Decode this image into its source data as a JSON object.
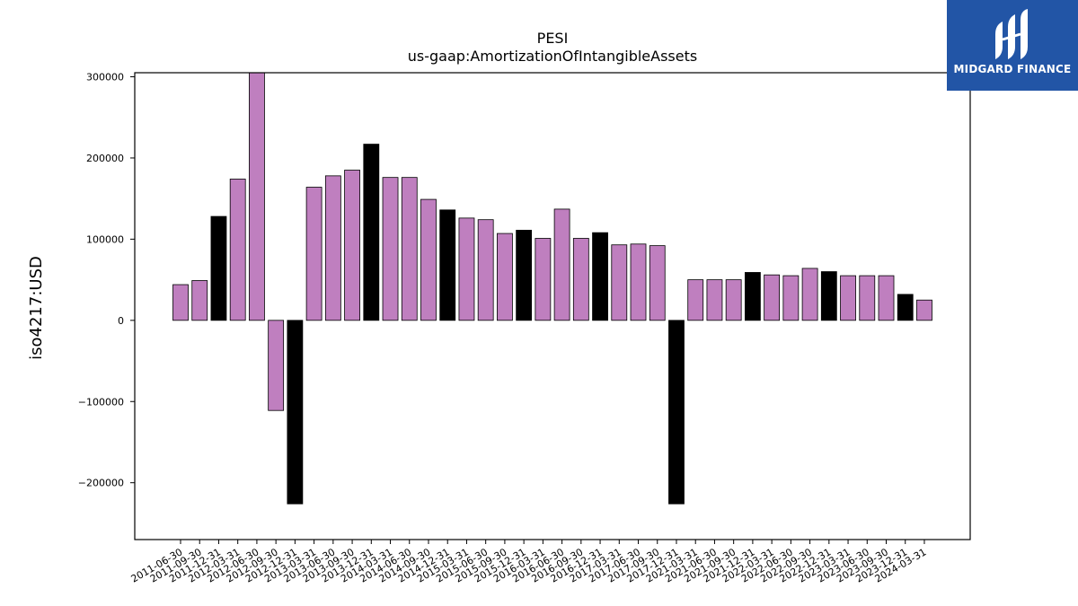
{
  "chart_data": {
    "type": "bar",
    "title": "PESI",
    "subtitle": "us-gaap:AmortizationOfIntangibleAssets",
    "xlabel": "",
    "ylabel": "iso4217:USD",
    "ylim": [
      -270000,
      305000
    ],
    "yticks": [
      -200000,
      -100000,
      0,
      100000,
      200000,
      300000
    ],
    "grid": false,
    "colors": {
      "quarter": "#bf7fbf",
      "annual": "#000000",
      "edge": "#000000"
    },
    "categories": [
      "2011-06-30",
      "2011-09-30",
      "2011-12-31",
      "2012-03-31",
      "2012-06-30",
      "2012-09-30",
      "2012-12-31",
      "2013-03-31",
      "2013-06-30",
      "2013-09-30",
      "2013-12-31",
      "2014-03-31",
      "2014-06-30",
      "2014-09-30",
      "2014-12-31",
      "2015-03-31",
      "2015-06-30",
      "2015-09-30",
      "2015-12-31",
      "2016-03-31",
      "2016-06-30",
      "2016-09-30",
      "2016-12-31",
      "2017-03-31",
      "2017-06-30",
      "2017-09-30",
      "2017-12-31",
      "2021-03-31",
      "2021-06-30",
      "2021-09-30",
      "2021-12-31",
      "2022-03-31",
      "2022-06-30",
      "2022-09-30",
      "2022-12-31",
      "2023-03-31",
      "2023-06-30",
      "2023-09-30",
      "2023-12-31",
      "2024-03-31"
    ],
    "values": [
      44000,
      49000,
      128000,
      174000,
      310000,
      -111000,
      -226000,
      164000,
      178000,
      185000,
      217000,
      176000,
      176000,
      149000,
      136000,
      126000,
      124000,
      107000,
      111000,
      101000,
      137000,
      101000,
      108000,
      93000,
      94000,
      92000,
      -226000,
      50000,
      50000,
      50000,
      59000,
      56000,
      55000,
      64000,
      60000,
      55000,
      55000,
      55000,
      32000,
      25000
    ],
    "annual": [
      false,
      false,
      true,
      false,
      false,
      false,
      true,
      false,
      false,
      false,
      true,
      false,
      false,
      false,
      true,
      false,
      false,
      false,
      true,
      false,
      false,
      false,
      true,
      false,
      false,
      false,
      true,
      false,
      false,
      false,
      true,
      false,
      false,
      false,
      true,
      false,
      false,
      false,
      true,
      false
    ]
  },
  "logo": {
    "text": "MIDGARD FINANCE",
    "mark": "midgard-logo-mark"
  }
}
